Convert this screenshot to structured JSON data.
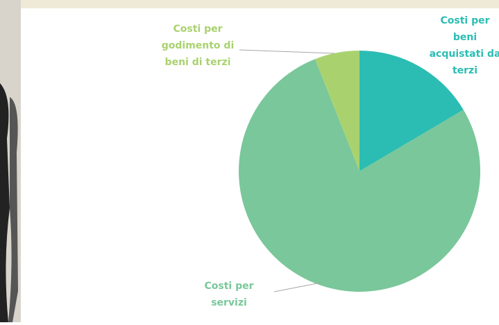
{
  "chart_data": {
    "type": "pie",
    "categories": [
      "Costi per beni acquistati da terzi",
      "Costi per servizi",
      "Costi per godimento di beni di terzi"
    ],
    "values": [
      16.5,
      77.5,
      6
    ],
    "colors": [
      "#2bbdb3",
      "#79c79a",
      "#a9d26f"
    ],
    "label_colors": [
      "#2bbdb3",
      "#79c79a",
      "#a9d26f"
    ]
  }
}
